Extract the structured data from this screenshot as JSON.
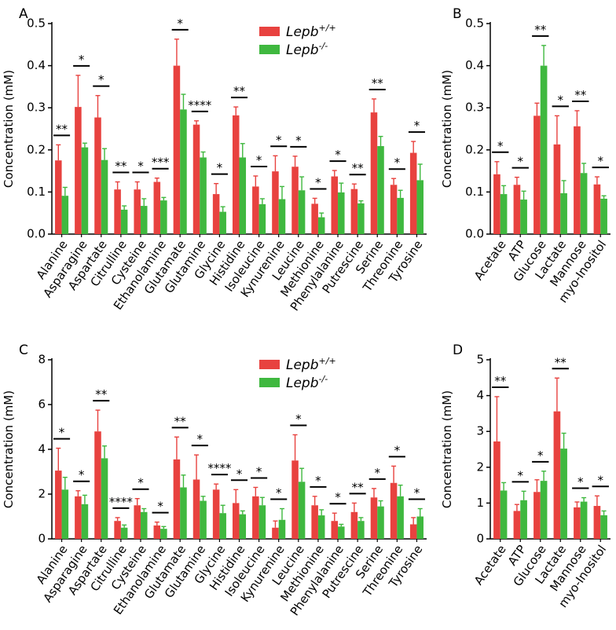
{
  "colors": {
    "wt": "#e8423f",
    "ko": "#3fb83f",
    "axis": "#000000"
  },
  "legend": {
    "wt": {
      "base": "Lepb",
      "sup": "+/+"
    },
    "ko": {
      "base": "Lepb",
      "sup": "-/-"
    }
  },
  "chart_data": [
    {
      "panel": "A",
      "type": "bar",
      "ylabel": "Concentration (mM)",
      "ylim": [
        0,
        0.5
      ],
      "yticks": [
        0.0,
        0.1,
        0.2,
        0.3,
        0.4,
        0.5
      ],
      "ytick_labels": [
        "0.0",
        "0.1",
        "0.2",
        "0.3",
        "0.4",
        "0.5"
      ],
      "categories": [
        "Alanine",
        "Asparagine",
        "Aspartate",
        "Citrulline",
        "Cysteine",
        "Ethanolamine",
        "Glutamate",
        "Glutamine",
        "Glycine",
        "Histidine",
        "Isoleucine",
        "Kynurenine",
        "Leucine",
        "Methionine",
        "Phenylalanine",
        "Putrescine",
        "Serine",
        "Threonine",
        "Tyrosine"
      ],
      "series": [
        {
          "name": "Lepb+/+",
          "values": [
            0.175,
            0.302,
            0.277,
            0.106,
            0.106,
            0.124,
            0.4,
            0.26,
            0.095,
            0.282,
            0.113,
            0.149,
            0.16,
            0.072,
            0.137,
            0.107,
            0.289,
            0.117,
            0.193
          ],
          "errors": [
            0.037,
            0.075,
            0.052,
            0.018,
            0.018,
            0.009,
            0.063,
            0.009,
            0.025,
            0.02,
            0.025,
            0.037,
            0.025,
            0.013,
            0.014,
            0.012,
            0.032,
            0.015,
            0.027
          ]
        },
        {
          "name": "Lepb-/-",
          "values": [
            0.091,
            0.206,
            0.176,
            0.058,
            0.067,
            0.08,
            0.296,
            0.182,
            0.053,
            0.182,
            0.071,
            0.083,
            0.104,
            0.04,
            0.099,
            0.073,
            0.209,
            0.086,
            0.128
          ],
          "errors": [
            0.02,
            0.01,
            0.027,
            0.009,
            0.017,
            0.007,
            0.036,
            0.013,
            0.012,
            0.033,
            0.013,
            0.03,
            0.032,
            0.01,
            0.022,
            0.006,
            0.023,
            0.018,
            0.038
          ]
        }
      ],
      "significance": [
        "**",
        "*",
        "*",
        "**",
        "*",
        "***",
        "*",
        "****",
        "*",
        "**",
        "*",
        "*",
        "*",
        "*",
        "*",
        "**",
        "**",
        "*",
        "*"
      ]
    },
    {
      "panel": "B",
      "type": "bar",
      "ylabel": "Concentration (mM)",
      "ylim": [
        0,
        0.5
      ],
      "yticks": [
        0.0,
        0.1,
        0.2,
        0.3,
        0.4,
        0.5
      ],
      "ytick_labels": [
        "0.0",
        "0.1",
        "0.2",
        "0.3",
        "0.4",
        "0.5"
      ],
      "categories": [
        "Acetate",
        "ATP",
        "Glucose",
        "Lactate",
        "Mannose",
        "myo-Inositol"
      ],
      "series": [
        {
          "name": "Lepb+/+",
          "values": [
            0.142,
            0.117,
            0.281,
            0.213,
            0.256,
            0.118
          ],
          "errors": [
            0.03,
            0.018,
            0.03,
            0.068,
            0.037,
            0.018
          ]
        },
        {
          "name": "Lepb-/-",
          "values": [
            0.095,
            0.082,
            0.4,
            0.097,
            0.145,
            0.084
          ],
          "errors": [
            0.02,
            0.02,
            0.048,
            0.03,
            0.023,
            0.007
          ]
        }
      ],
      "significance": [
        "*",
        "*",
        "**",
        "*",
        "**",
        "*"
      ]
    },
    {
      "panel": "C",
      "type": "bar",
      "ylabel": "Concentration (mM)",
      "ylim": [
        0,
        8
      ],
      "yticks": [
        0,
        2,
        4,
        6,
        8
      ],
      "ytick_labels": [
        "0",
        "2",
        "4",
        "6",
        "8"
      ],
      "categories": [
        "Alanine",
        "Asparagine",
        "Aspartate",
        "Citrulline",
        "Cysteine",
        "Ethanolamine",
        "Glutamate",
        "Glutamine",
        "Glycine",
        "Histidine",
        "Isoleucine",
        "Kynurenine",
        "Leucine",
        "Methionine",
        "Phenylalanine",
        "Putrescine",
        "Serine",
        "Threonine",
        "Tyrosine"
      ],
      "series": [
        {
          "name": "Lepb+/+",
          "values": [
            3.05,
            1.9,
            4.8,
            0.8,
            1.5,
            0.6,
            3.55,
            2.65,
            2.2,
            1.6,
            1.9,
            0.5,
            3.5,
            1.5,
            0.8,
            1.2,
            1.85,
            2.5,
            0.65
          ],
          "errors": [
            1.0,
            0.25,
            0.95,
            0.15,
            0.3,
            0.15,
            1.0,
            1.1,
            0.25,
            0.6,
            0.4,
            0.3,
            1.15,
            0.4,
            0.35,
            0.4,
            0.4,
            0.75,
            0.3
          ]
        },
        {
          "name": "Lepb-/-",
          "values": [
            2.2,
            1.55,
            3.6,
            0.5,
            1.2,
            0.45,
            2.3,
            1.7,
            1.15,
            1.1,
            1.5,
            0.85,
            2.55,
            1.05,
            0.55,
            0.8,
            1.45,
            1.9,
            1.0
          ],
          "errors": [
            0.55,
            0.4,
            0.55,
            0.12,
            0.15,
            0.1,
            0.55,
            0.2,
            0.35,
            0.15,
            0.35,
            0.5,
            0.6,
            0.25,
            0.1,
            0.15,
            0.25,
            0.5,
            0.35
          ]
        }
      ],
      "significance": [
        "*",
        "*",
        "**",
        "****",
        "*",
        "*",
        "**",
        "*",
        "****",
        "*",
        "*",
        "*",
        "*",
        "*",
        "*",
        "**",
        "*",
        "*",
        "*"
      ]
    },
    {
      "panel": "D",
      "type": "bar",
      "ylabel": "Concentration (mM)",
      "ylim": [
        0,
        5
      ],
      "yticks": [
        0,
        1,
        2,
        3,
        4,
        5
      ],
      "ytick_labels": [
        "0",
        "1",
        "2",
        "3",
        "4",
        "5"
      ],
      "categories": [
        "Acetate",
        "ATP",
        "Glucose",
        "Lactate",
        "Mannose",
        "myo-Inositol"
      ],
      "series": [
        {
          "name": "Lepb+/+",
          "values": [
            2.72,
            0.78,
            1.31,
            3.56,
            0.88,
            0.92
          ],
          "errors": [
            1.25,
            0.18,
            0.34,
            0.93,
            0.15,
            0.28
          ]
        },
        {
          "name": "Lepb-/-",
          "values": [
            1.35,
            1.08,
            1.62,
            2.52,
            1.04,
            0.66
          ],
          "errors": [
            0.22,
            0.25,
            0.27,
            0.43,
            0.11,
            0.12
          ]
        }
      ],
      "significance": [
        "**",
        "*",
        "*",
        "**",
        "*",
        "*"
      ]
    }
  ]
}
